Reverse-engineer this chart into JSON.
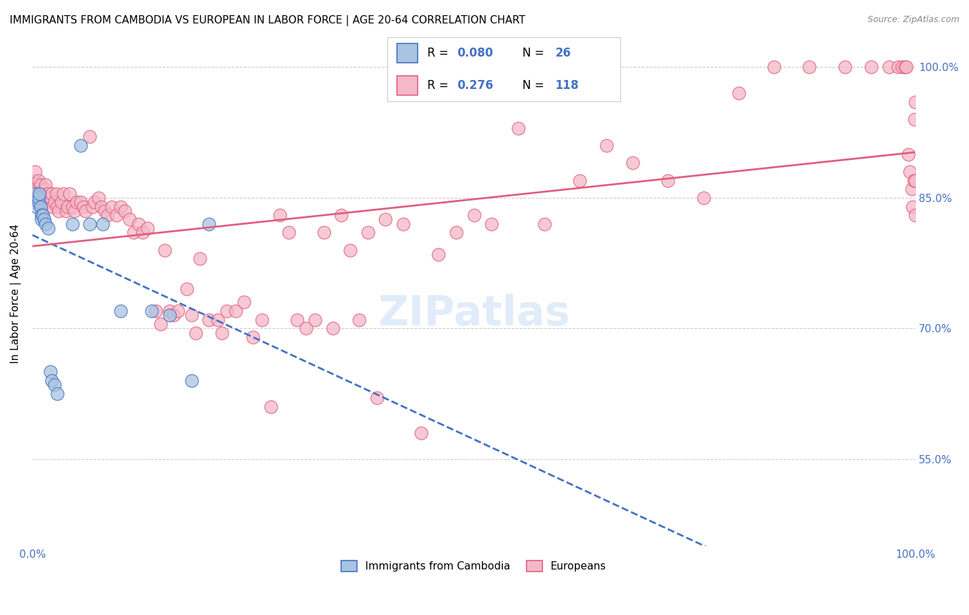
{
  "title": "IMMIGRANTS FROM CAMBODIA VS EUROPEAN IN LABOR FORCE | AGE 20-64 CORRELATION CHART",
  "source": "Source: ZipAtlas.com",
  "ylabel": "In Labor Force | Age 20-64",
  "xlim": [
    0.0,
    1.0
  ],
  "ylim": [
    0.45,
    1.03
  ],
  "yticks": [
    0.55,
    0.7,
    0.85,
    1.0
  ],
  "ytick_labels": [
    "55.0%",
    "70.0%",
    "85.0%",
    "100.0%"
  ],
  "cambodia_color": "#a8c4e0",
  "european_color": "#f4b8c8",
  "cambodia_line_color": "#4472c4",
  "european_line_color": "#e06080",
  "axis_label_color": "#4472c4",
  "cambodia_x": [
    0.003,
    0.003,
    0.005,
    0.007,
    0.007,
    0.008,
    0.009,
    0.01,
    0.01,
    0.012,
    0.013,
    0.015,
    0.018,
    0.02,
    0.022,
    0.025,
    0.028,
    0.045,
    0.055,
    0.065,
    0.08,
    0.1,
    0.135,
    0.155,
    0.18,
    0.2
  ],
  "cambodia_y": [
    0.845,
    0.855,
    0.84,
    0.845,
    0.85,
    0.855,
    0.84,
    0.83,
    0.825,
    0.83,
    0.825,
    0.82,
    0.815,
    0.65,
    0.64,
    0.635,
    0.625,
    0.82,
    0.91,
    0.82,
    0.82,
    0.72,
    0.72,
    0.715,
    0.64,
    0.82
  ],
  "european_x": [
    0.002,
    0.003,
    0.003,
    0.004,
    0.006,
    0.007,
    0.008,
    0.009,
    0.01,
    0.011,
    0.012,
    0.013,
    0.014,
    0.015,
    0.017,
    0.018,
    0.02,
    0.022,
    0.023,
    0.025,
    0.027,
    0.028,
    0.03,
    0.033,
    0.035,
    0.038,
    0.04,
    0.042,
    0.045,
    0.048,
    0.05,
    0.055,
    0.058,
    0.06,
    0.065,
    0.068,
    0.07,
    0.075,
    0.078,
    0.082,
    0.085,
    0.09,
    0.095,
    0.1,
    0.105,
    0.11,
    0.115,
    0.12,
    0.125,
    0.13,
    0.14,
    0.145,
    0.15,
    0.155,
    0.16,
    0.165,
    0.175,
    0.18,
    0.185,
    0.19,
    0.2,
    0.21,
    0.215,
    0.22,
    0.23,
    0.24,
    0.25,
    0.26,
    0.27,
    0.28,
    0.29,
    0.3,
    0.31,
    0.32,
    0.33,
    0.34,
    0.35,
    0.36,
    0.37,
    0.38,
    0.39,
    0.4,
    0.42,
    0.44,
    0.46,
    0.48,
    0.5,
    0.52,
    0.55,
    0.58,
    0.62,
    0.65,
    0.68,
    0.72,
    0.76,
    0.8,
    0.84,
    0.88,
    0.92,
    0.95,
    0.97,
    0.98,
    0.985,
    0.988,
    0.99,
    0.992,
    0.994,
    0.996,
    0.997,
    0.998,
    0.999,
    1.0,
    1.0,
    1.0
  ],
  "european_y": [
    0.87,
    0.88,
    0.86,
    0.855,
    0.86,
    0.87,
    0.855,
    0.865,
    0.84,
    0.85,
    0.855,
    0.845,
    0.86,
    0.865,
    0.855,
    0.845,
    0.85,
    0.855,
    0.84,
    0.845,
    0.855,
    0.84,
    0.835,
    0.845,
    0.855,
    0.835,
    0.84,
    0.855,
    0.84,
    0.835,
    0.845,
    0.845,
    0.84,
    0.835,
    0.92,
    0.84,
    0.845,
    0.85,
    0.84,
    0.835,
    0.83,
    0.84,
    0.83,
    0.84,
    0.835,
    0.825,
    0.81,
    0.82,
    0.81,
    0.815,
    0.72,
    0.705,
    0.79,
    0.72,
    0.715,
    0.72,
    0.745,
    0.715,
    0.695,
    0.78,
    0.71,
    0.71,
    0.695,
    0.72,
    0.72,
    0.73,
    0.69,
    0.71,
    0.61,
    0.83,
    0.81,
    0.71,
    0.7,
    0.71,
    0.81,
    0.7,
    0.83,
    0.79,
    0.71,
    0.81,
    0.62,
    0.825,
    0.82,
    0.58,
    0.785,
    0.81,
    0.83,
    0.82,
    0.93,
    0.82,
    0.87,
    0.91,
    0.89,
    0.87,
    0.85,
    0.97,
    1.0,
    1.0,
    1.0,
    1.0,
    1.0,
    1.0,
    1.0,
    1.0,
    1.0,
    0.9,
    0.88,
    0.86,
    0.84,
    0.87,
    0.94,
    0.87,
    0.96,
    0.83
  ]
}
